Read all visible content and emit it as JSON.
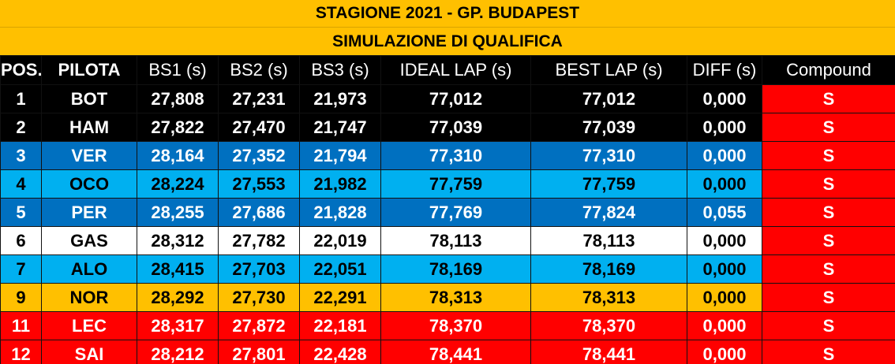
{
  "title": "STAGIONE 2021 - GP. BUDAPEST",
  "subtitle": "SIMULAZIONE DI QUALIFICA",
  "headers": {
    "pos": "POS.",
    "pilota": "PILOTA",
    "bs1": "BS1 (s)",
    "bs2": "BS2 (s)",
    "bs3": "BS3 (s)",
    "ideal": "IDEAL LAP (s)",
    "best": "BEST LAP (s)",
    "diff": "DIFF (s)",
    "compound": "Compound"
  },
  "colors": {
    "header_bar": "#ffc000",
    "compound": "#ff0000"
  },
  "rows": [
    {
      "pos": "1",
      "pilota": "BOT",
      "bs1": "27,808",
      "bs2": "27,231",
      "bs3": "21,973",
      "ideal": "77,012",
      "best": "77,012",
      "diff": "0,000",
      "compound": "S",
      "bg": "#000000",
      "fg": "#ffffff"
    },
    {
      "pos": "2",
      "pilota": "HAM",
      "bs1": "27,822",
      "bs2": "27,470",
      "bs3": "21,747",
      "ideal": "77,039",
      "best": "77,039",
      "diff": "0,000",
      "compound": "S",
      "bg": "#000000",
      "fg": "#ffffff"
    },
    {
      "pos": "3",
      "pilota": "VER",
      "bs1": "28,164",
      "bs2": "27,352",
      "bs3": "21,794",
      "ideal": "77,310",
      "best": "77,310",
      "diff": "0,000",
      "compound": "S",
      "bg": "#0070c0",
      "fg": "#ffffff"
    },
    {
      "pos": "4",
      "pilota": "OCO",
      "bs1": "28,224",
      "bs2": "27,553",
      "bs3": "21,982",
      "ideal": "77,759",
      "best": "77,759",
      "diff": "0,000",
      "compound": "S",
      "bg": "#00b0f0",
      "fg": "#000000"
    },
    {
      "pos": "5",
      "pilota": "PER",
      "bs1": "28,255",
      "bs2": "27,686",
      "bs3": "21,828",
      "ideal": "77,769",
      "best": "77,824",
      "diff": "0,055",
      "compound": "S",
      "bg": "#0070c0",
      "fg": "#ffffff"
    },
    {
      "pos": "6",
      "pilota": "GAS",
      "bs1": "28,312",
      "bs2": "27,782",
      "bs3": "22,019",
      "ideal": "78,113",
      "best": "78,113",
      "diff": "0,000",
      "compound": "S",
      "bg": "#ffffff",
      "fg": "#000000"
    },
    {
      "pos": "7",
      "pilota": "ALO",
      "bs1": "28,415",
      "bs2": "27,703",
      "bs3": "22,051",
      "ideal": "78,169",
      "best": "78,169",
      "diff": "0,000",
      "compound": "S",
      "bg": "#00b0f0",
      "fg": "#000000"
    },
    {
      "pos": "9",
      "pilota": "NOR",
      "bs1": "28,292",
      "bs2": "27,730",
      "bs3": "22,291",
      "ideal": "78,313",
      "best": "78,313",
      "diff": "0,000",
      "compound": "S",
      "bg": "#ffc000",
      "fg": "#000000"
    },
    {
      "pos": "11",
      "pilota": "LEC",
      "bs1": "28,317",
      "bs2": "27,872",
      "bs3": "22,181",
      "ideal": "78,370",
      "best": "78,370",
      "diff": "0,000",
      "compound": "S",
      "bg": "#ff0000",
      "fg": "#ffffff"
    },
    {
      "pos": "12",
      "pilota": "SAI",
      "bs1": "28,212",
      "bs2": "27,801",
      "bs3": "22,428",
      "ideal": "78,441",
      "best": "78,441",
      "diff": "0,000",
      "compound": "S",
      "bg": "#ff0000",
      "fg": "#ffffff"
    }
  ]
}
